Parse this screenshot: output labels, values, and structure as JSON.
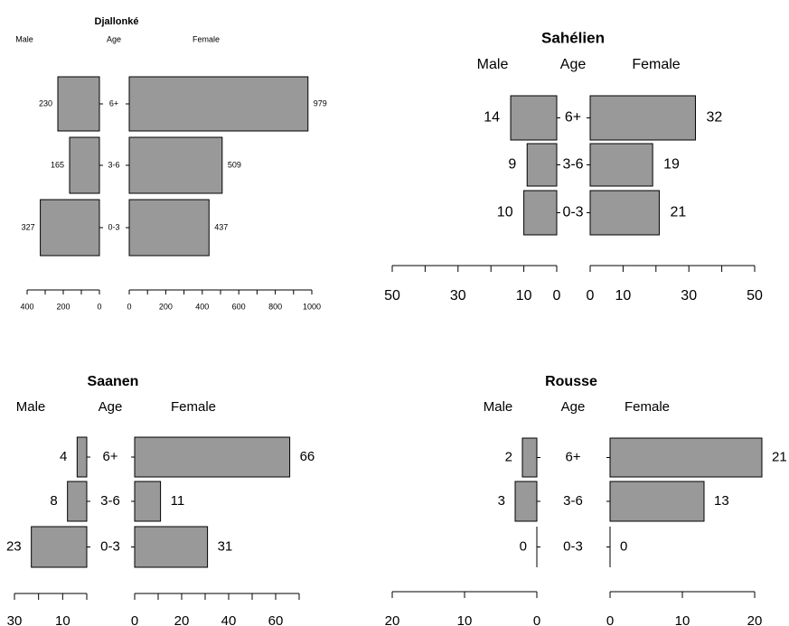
{
  "chart_data": [
    {
      "type": "bar",
      "title": "Djallonké",
      "header": {
        "male": "Male",
        "age": "Age",
        "female": "Female"
      },
      "categories": [
        "6+",
        "3-6",
        "0-3"
      ],
      "series": [
        {
          "name": "Male",
          "values": [
            230,
            165,
            327
          ]
        },
        {
          "name": "Female",
          "values": [
            979,
            509,
            437
          ]
        }
      ],
      "male_xlim": [
        0,
        400
      ],
      "female_xlim": [
        0,
        1000
      ],
      "male_ticks": [
        400,
        300,
        200,
        100,
        0
      ],
      "male_tick_labels": [
        "400",
        "",
        "200",
        "",
        "0"
      ],
      "female_ticks": [
        0,
        100,
        200,
        300,
        400,
        500,
        600,
        700,
        800,
        900,
        1000
      ],
      "female_tick_labels": [
        "0",
        "",
        "200",
        "",
        "400",
        "",
        "600",
        "",
        "800",
        "",
        "1000"
      ]
    },
    {
      "type": "bar",
      "title": "Sahélien",
      "header": {
        "male": "Male",
        "age": "Age",
        "female": "Female"
      },
      "categories": [
        "6+",
        "3-6",
        "0-3"
      ],
      "series": [
        {
          "name": "Male",
          "values": [
            14,
            9,
            10
          ]
        },
        {
          "name": "Female",
          "values": [
            32,
            19,
            21
          ]
        }
      ],
      "male_xlim": [
        0,
        50
      ],
      "female_xlim": [
        0,
        50
      ],
      "male_ticks": [
        50,
        40,
        30,
        20,
        10,
        0
      ],
      "male_tick_labels": [
        "50",
        "",
        "30",
        "",
        "10",
        "0"
      ],
      "female_ticks": [
        0,
        10,
        20,
        30,
        40,
        50
      ],
      "female_tick_labels": [
        "0",
        "10",
        "",
        "30",
        "",
        "50"
      ]
    },
    {
      "type": "bar",
      "title": "Saanen",
      "header": {
        "male": "Male",
        "age": "Age",
        "female": "Female"
      },
      "categories": [
        "6+",
        "3-6",
        "0-3"
      ],
      "series": [
        {
          "name": "Male",
          "values": [
            4,
            8,
            23
          ]
        },
        {
          "name": "Female",
          "values": [
            66,
            11,
            31
          ]
        }
      ],
      "male_xlim": [
        0,
        30
      ],
      "female_xlim": [
        0,
        70
      ],
      "male_ticks": [
        30,
        20,
        10,
        0
      ],
      "male_tick_labels": [
        "30",
        "",
        "10",
        ""
      ],
      "female_ticks": [
        0,
        10,
        20,
        30,
        40,
        50,
        60,
        70
      ],
      "female_tick_labels": [
        "0",
        "",
        "20",
        "",
        "40",
        "",
        "60",
        ""
      ]
    },
    {
      "type": "bar",
      "title": "Rousse",
      "header": {
        "male": "Male",
        "age": "Age",
        "female": "Female"
      },
      "categories": [
        "6+",
        "3-6",
        "0-3"
      ],
      "series": [
        {
          "name": "Male",
          "values": [
            2,
            3,
            0
          ]
        },
        {
          "name": "Female",
          "values": [
            21,
            13,
            0
          ]
        }
      ],
      "male_xlim": [
        0,
        20
      ],
      "female_xlim": [
        0,
        20
      ],
      "male_ticks": [
        20,
        10,
        0
      ],
      "male_tick_labels": [
        "20",
        "10",
        "0"
      ],
      "female_ticks": [
        0,
        10,
        20
      ],
      "female_tick_labels": [
        "0",
        "10",
        "20"
      ]
    }
  ]
}
